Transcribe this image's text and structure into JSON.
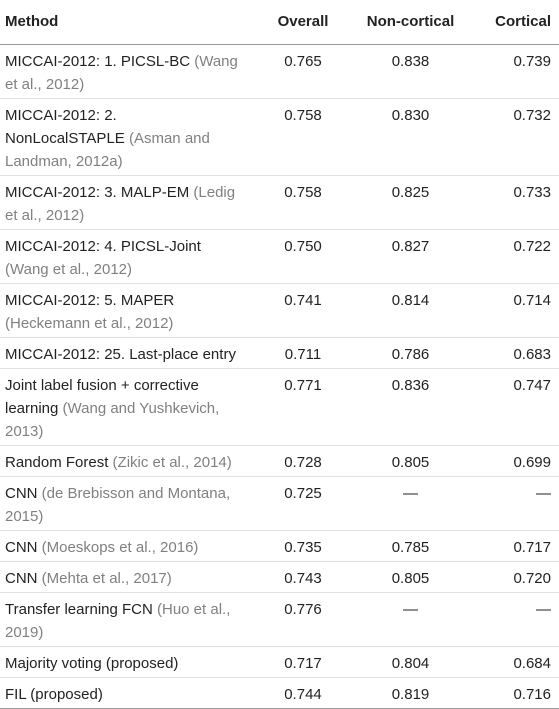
{
  "headers": [
    "Method",
    "Overall",
    "Non-cortical",
    "Cortical"
  ],
  "rows": [
    {
      "method": "MICCAI-2012: 1. PICSL-BC",
      "ref": "(Wang et al., 2012)",
      "overall": "0.765",
      "noncortical": "0.838",
      "cortical": "0.739"
    },
    {
      "method": "MICCAI-2012: 2. NonLocalSTAPLE",
      "ref": "(Asman and Landman, 2012a)",
      "overall": "0.758",
      "noncortical": "0.830",
      "cortical": "0.732"
    },
    {
      "method": "MICCAI-2012: 3. MALP-EM",
      "ref": "(Ledig et al., 2012)",
      "overall": "0.758",
      "noncortical": "0.825",
      "cortical": "0.733"
    },
    {
      "method": "MICCAI-2012: 4. PICSL-Joint",
      "ref": "(Wang et al., 2012)",
      "overall": "0.750",
      "noncortical": "0.827",
      "cortical": "0.722"
    },
    {
      "method": "MICCAI-2012: 5. MAPER",
      "ref": "(Heckemann et al., 2012)",
      "overall": "0.741",
      "noncortical": "0.814",
      "cortical": "0.714"
    },
    {
      "method": "MICCAI-2012: 25. Last-place entry",
      "ref": "",
      "overall": "0.711",
      "noncortical": "0.786",
      "cortical": "0.683"
    },
    {
      "method": "Joint label fusion + corrective learning",
      "ref": "(Wang and Yushkevich, 2013)",
      "overall": "0.771",
      "noncortical": "0.836",
      "cortical": "0.747"
    },
    {
      "method": "Random Forest",
      "ref": "(Zikic et al., 2014)",
      "overall": "0.728",
      "noncortical": "0.805",
      "cortical": "0.699"
    },
    {
      "method": "CNN",
      "ref": "(de Brebisson and Montana, 2015)",
      "overall": "0.725",
      "noncortical": "—",
      "cortical": "—"
    },
    {
      "method": "CNN",
      "ref": "(Moeskops et al., 2016)",
      "overall": "0.735",
      "noncortical": "0.785",
      "cortical": "0.717"
    },
    {
      "method": "CNN",
      "ref": "(Mehta et al., 2017)",
      "overall": "0.743",
      "noncortical": "0.805",
      "cortical": "0.720"
    },
    {
      "method": "Transfer learning FCN",
      "ref": "(Huo et al., 2019)",
      "overall": "0.776",
      "noncortical": "—",
      "cortical": "—"
    },
    {
      "method": "Majority voting (proposed)",
      "ref": "",
      "overall": "0.717",
      "noncortical": "0.804",
      "cortical": "0.684"
    },
    {
      "method": "FIL (proposed)",
      "ref": "",
      "overall": "0.744",
      "noncortical": "0.819",
      "cortical": "0.716"
    }
  ]
}
